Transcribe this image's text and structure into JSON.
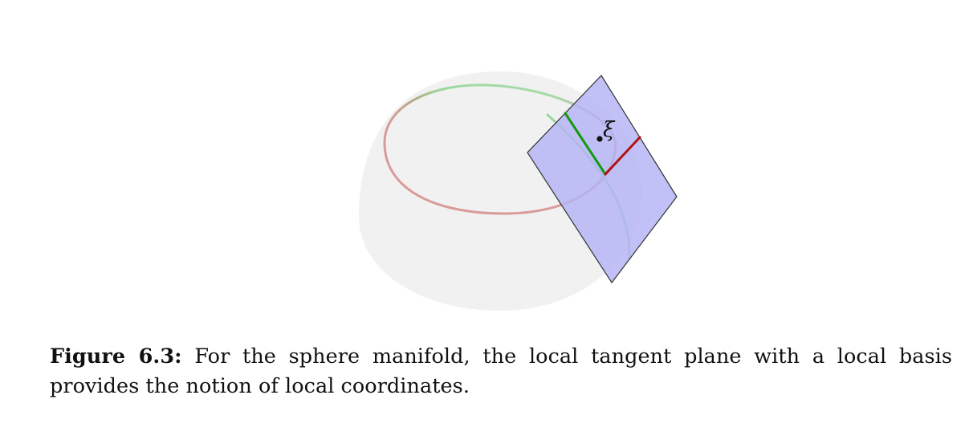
{
  "figure": {
    "point_label": "ξ",
    "colors": {
      "sphere_fill": "#f1f1f1",
      "circle_red": "#d99a9a",
      "circle_green": "#9cd9a0",
      "plane_fill": "#b3b3f5",
      "plane_stroke": "#333333",
      "basis_green": "#129a12",
      "basis_red": "#b01212"
    }
  },
  "caption": {
    "label": "Figure 6.3:",
    "text": "For the sphere manifold, the local tangent plane with a local basis provides the notion of local coordinates."
  }
}
